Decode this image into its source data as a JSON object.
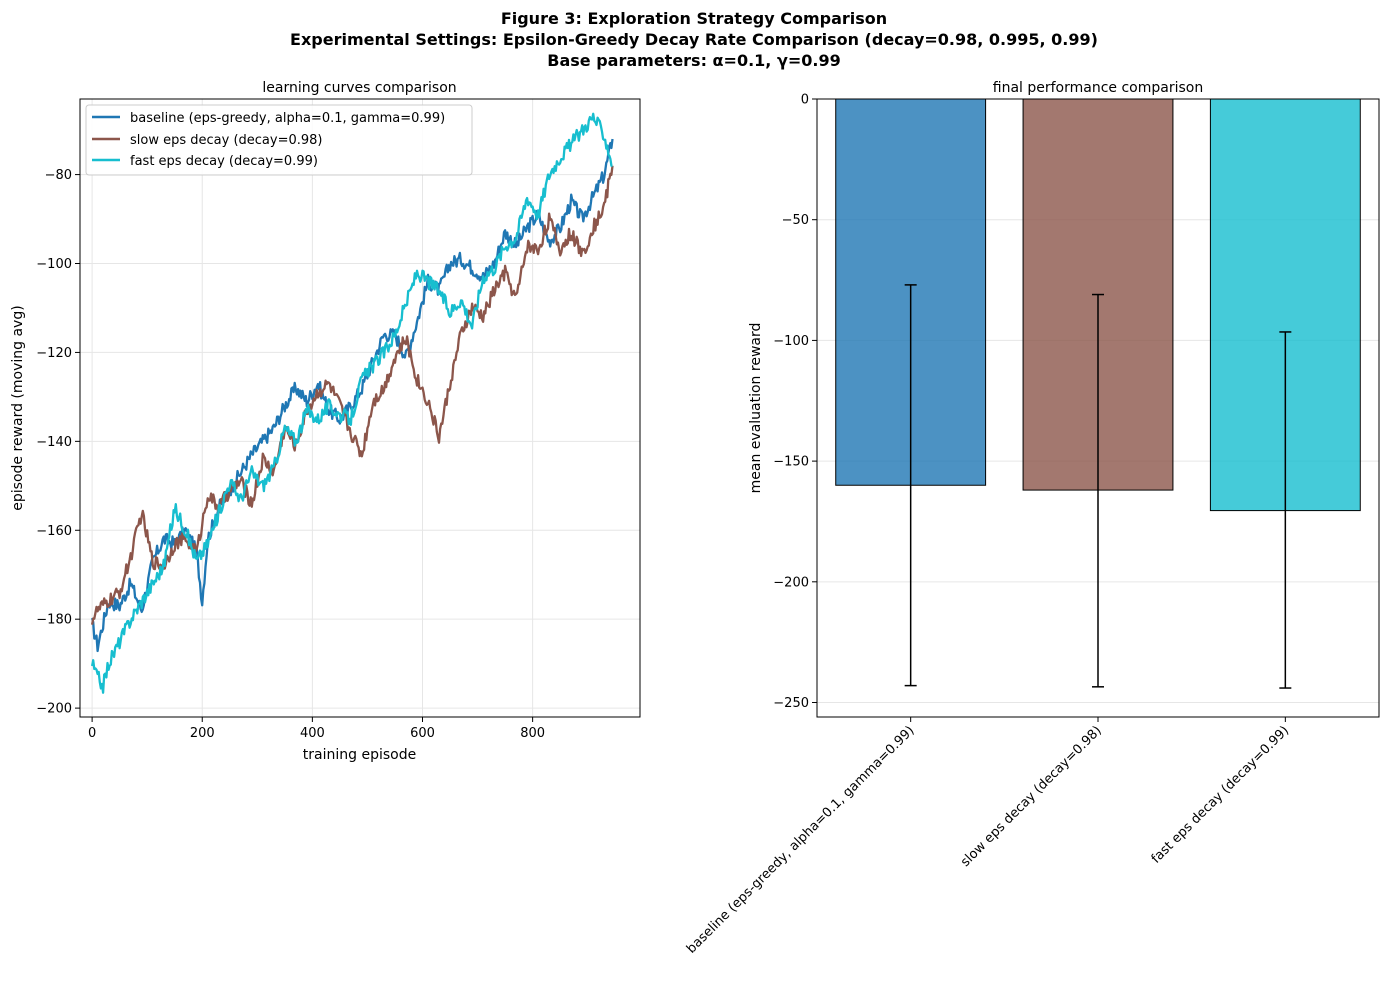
{
  "figure": {
    "title_lines": [
      "Figure 3: Exploration Strategy Comparison",
      "Experimental Settings: Epsilon-Greedy Decay Rate Comparison (decay=0.98, 0.995, 0.99)",
      "Base parameters: α=0.1, γ=0.99"
    ]
  },
  "chart_data": [
    {
      "type": "line",
      "title": "learning curves comparison",
      "xlabel": "training episode",
      "ylabel": "episode reward (moving avg)",
      "xlim": [
        -22,
        995
      ],
      "ylim": [
        -202,
        -63
      ],
      "xticks": [
        0,
        200,
        400,
        600,
        800
      ],
      "yticks": [
        -200,
        -180,
        -160,
        -140,
        -120,
        -100,
        -80
      ],
      "grid": true,
      "legend": "top-left",
      "series": [
        {
          "name": "baseline (eps-greedy, alpha=0.1, gamma=0.99)",
          "color": "#1f77b4",
          "x": [
            0,
            10,
            30,
            50,
            70,
            90,
            110,
            130,
            150,
            170,
            190,
            200,
            210,
            230,
            250,
            270,
            290,
            310,
            330,
            350,
            370,
            390,
            410,
            430,
            450,
            470,
            490,
            510,
            530,
            550,
            570,
            590,
            610,
            630,
            650,
            670,
            690,
            710,
            730,
            750,
            770,
            790,
            810,
            830,
            850,
            870,
            890,
            910,
            930,
            945
          ],
          "values": [
            -181,
            -186,
            -176,
            -177,
            -172,
            -178,
            -167,
            -162,
            -163,
            -160,
            -165,
            -176,
            -162,
            -155,
            -151,
            -147,
            -143,
            -140,
            -137,
            -132,
            -128,
            -131,
            -127,
            -133,
            -135,
            -132,
            -128,
            -122,
            -116,
            -116,
            -121,
            -113,
            -104,
            -106,
            -100,
            -99,
            -101,
            -103,
            -100,
            -93,
            -96,
            -92,
            -89,
            -95,
            -92,
            -86,
            -90,
            -85,
            -80,
            -72
          ]
        },
        {
          "name": "slow eps decay (decay=0.98)",
          "color": "#8c564b",
          "x": [
            0,
            10,
            30,
            50,
            70,
            90,
            110,
            130,
            150,
            170,
            190,
            210,
            230,
            250,
            270,
            290,
            310,
            330,
            350,
            370,
            390,
            410,
            430,
            450,
            470,
            490,
            510,
            530,
            550,
            570,
            590,
            610,
            630,
            650,
            670,
            690,
            710,
            730,
            750,
            770,
            790,
            810,
            830,
            850,
            870,
            890,
            910,
            930,
            945
          ],
          "values": [
            -180,
            -178,
            -176,
            -174,
            -166,
            -156,
            -167,
            -168,
            -163,
            -162,
            -165,
            -152,
            -155,
            -151,
            -149,
            -154,
            -144,
            -147,
            -137,
            -141,
            -133,
            -129,
            -127,
            -132,
            -138,
            -143,
            -131,
            -128,
            -121,
            -117,
            -126,
            -131,
            -139,
            -127,
            -116,
            -110,
            -112,
            -106,
            -102,
            -108,
            -96,
            -97,
            -90,
            -97,
            -93,
            -98,
            -92,
            -87,
            -78
          ]
        },
        {
          "name": "fast eps decay (decay=0.99)",
          "color": "#17becf",
          "x": [
            0,
            10,
            20,
            30,
            50,
            70,
            90,
            110,
            130,
            150,
            170,
            190,
            210,
            230,
            250,
            270,
            290,
            310,
            330,
            350,
            370,
            390,
            410,
            430,
            450,
            470,
            490,
            510,
            530,
            550,
            570,
            590,
            610,
            630,
            650,
            670,
            690,
            710,
            730,
            750,
            770,
            790,
            810,
            830,
            850,
            870,
            890,
            910,
            930,
            945
          ],
          "values": [
            -190,
            -193,
            -195,
            -190,
            -185,
            -180,
            -176,
            -172,
            -168,
            -155,
            -160,
            -167,
            -163,
            -156,
            -149,
            -153,
            -147,
            -150,
            -146,
            -137,
            -140,
            -133,
            -135,
            -132,
            -134,
            -135,
            -126,
            -123,
            -120,
            -116,
            -109,
            -102,
            -104,
            -106,
            -111,
            -108,
            -114,
            -103,
            -101,
            -96,
            -94,
            -85,
            -89,
            -80,
            -76,
            -73,
            -70,
            -67,
            -71,
            -78
          ]
        }
      ]
    },
    {
      "type": "bar",
      "title": "final performance comparison",
      "xlabel": "",
      "ylabel": "mean evaluation reward",
      "ylim": [
        -256,
        0
      ],
      "yticks": [
        -250,
        -200,
        -150,
        -100,
        -50,
        0
      ],
      "grid": true,
      "categories": [
        "baseline (eps-greedy, alpha=0.1, gamma=0.99)",
        "slow eps decay (decay=0.98)",
        "fast eps decay (decay=0.99)"
      ],
      "values": [
        -160,
        -162,
        -170.5
      ],
      "error_low": [
        -243,
        -243.5,
        -244
      ],
      "error_high": [
        -77,
        -81,
        -96.5
      ],
      "colors": [
        "#1f77b4",
        "#8c564b",
        "#17becf"
      ]
    }
  ]
}
